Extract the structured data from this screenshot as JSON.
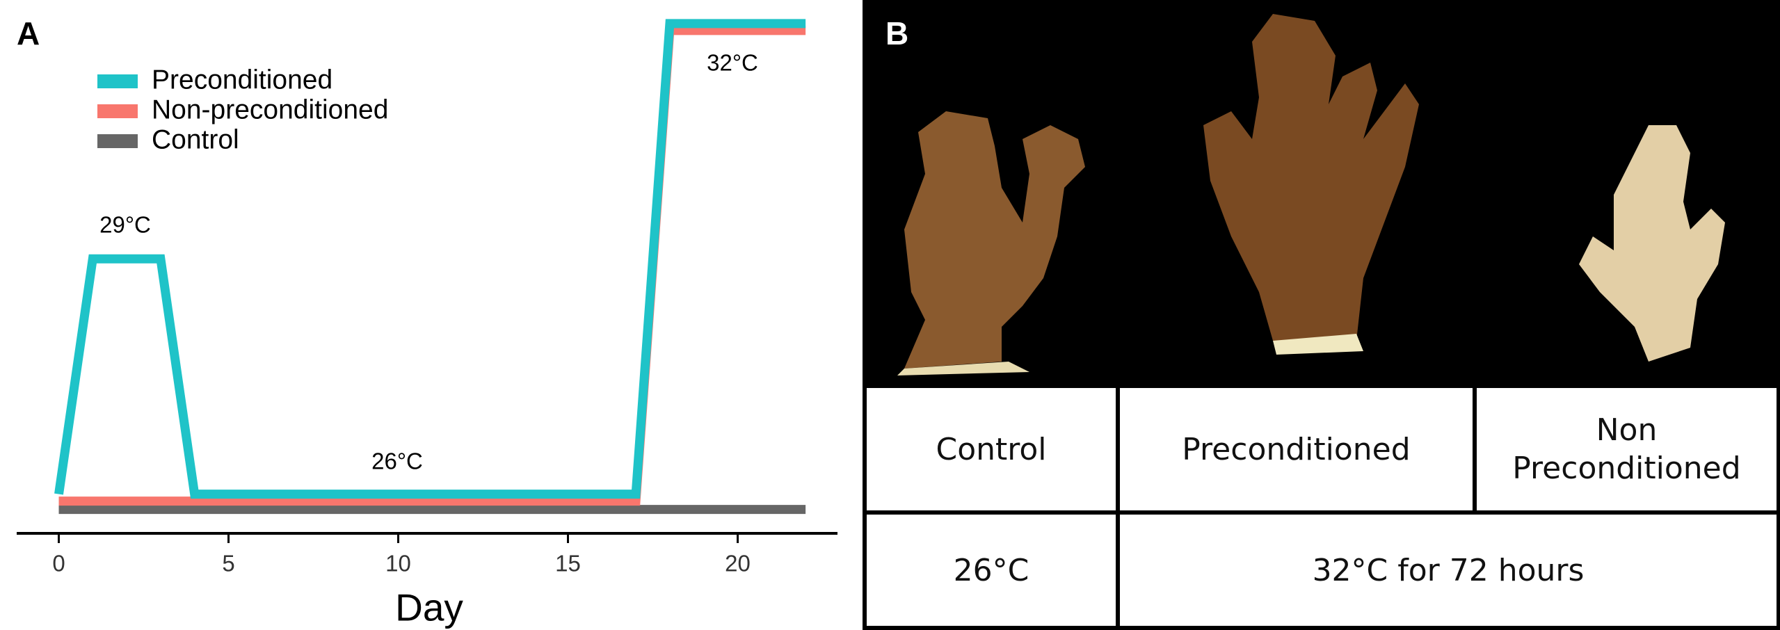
{
  "chart_data": {
    "type": "line",
    "series": [
      {
        "name": "Preconditioned",
        "color": "#1fc3c8",
        "x": [
          0,
          1,
          3,
          4,
          17,
          18,
          22
        ],
        "values": [
          26,
          29,
          29,
          26,
          26,
          32,
          32
        ]
      },
      {
        "name": "Non-preconditioned",
        "color": "#f8766d",
        "x": [
          0,
          17,
          18,
          22
        ],
        "values": [
          26,
          26,
          32,
          32
        ]
      },
      {
        "name": "Control",
        "color": "#666666",
        "x": [
          0,
          22
        ],
        "values": [
          26,
          26
        ]
      }
    ],
    "x_label": "Day",
    "xlim": [
      -1.24,
      22.94
    ],
    "xticks": [
      0,
      5,
      10,
      15,
      20
    ],
    "ylim": [
      25.5,
      32.3
    ],
    "legend": "top-left",
    "annotations": [
      "29°C",
      "26°C",
      "32°C"
    ]
  },
  "panel_labels": [
    "A",
    "B"
  ],
  "table": {
    "rows": [
      [
        "Control",
        "Preconditioned",
        "Non Preconditioned"
      ],
      [
        "26°C",
        "32°C for 72 hours"
      ]
    ]
  }
}
